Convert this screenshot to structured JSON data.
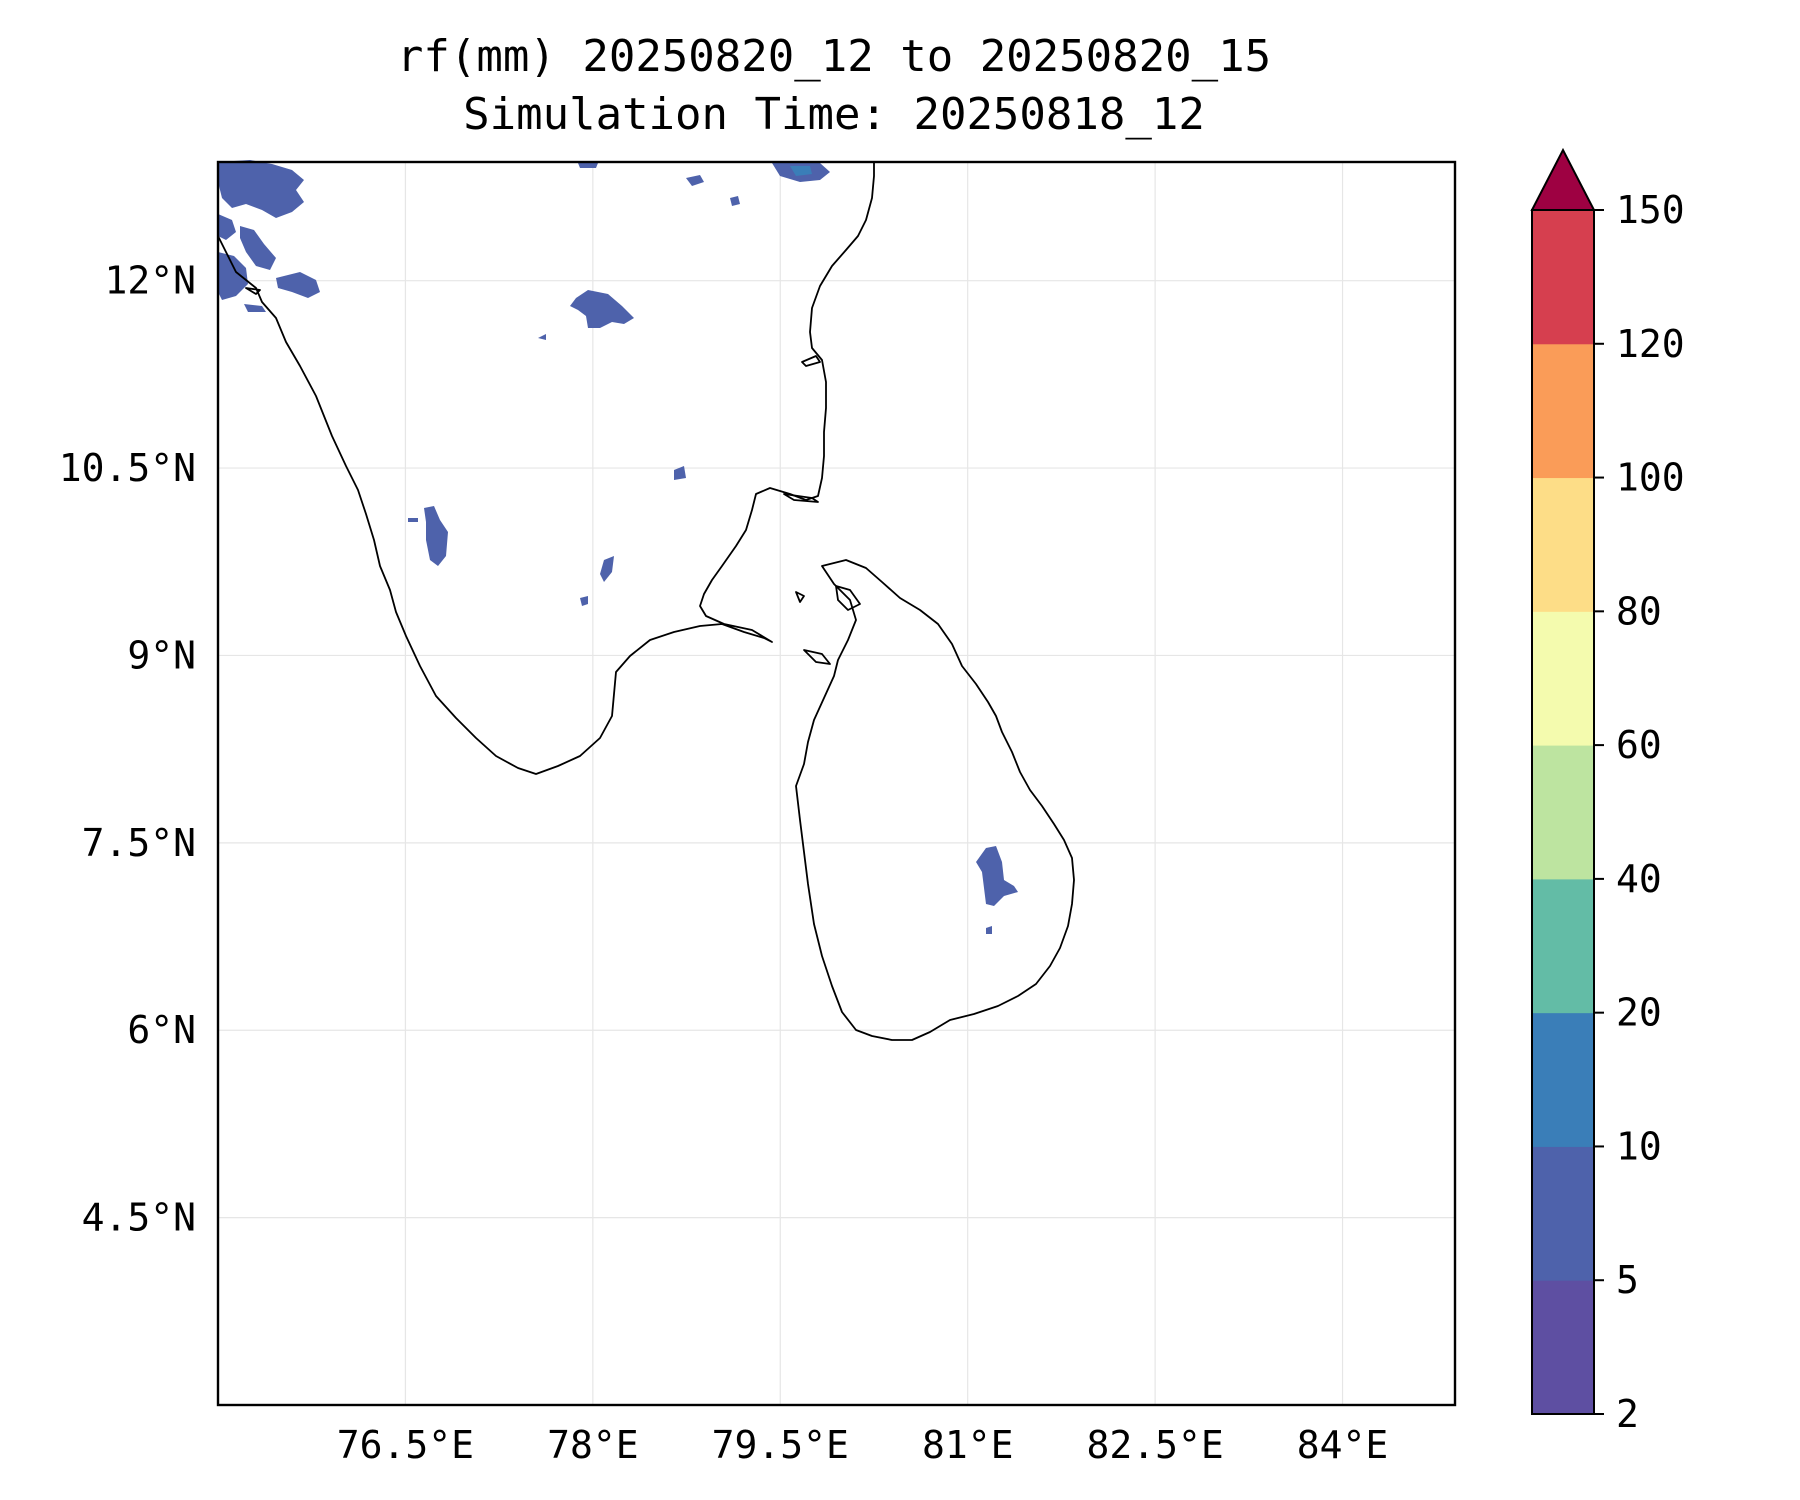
{
  "title": {
    "line1": "rf(mm) 20250820_12 to 20250820_15",
    "line2": "Simulation Time: 20250818_12"
  },
  "map": {
    "lon_range": [
      75.0,
      84.9
    ],
    "lat_range": [
      3.0,
      12.95
    ],
    "lon_ticks": [
      {
        "value": 76.5,
        "label": "76.5°E"
      },
      {
        "value": 78.0,
        "label": "78°E"
      },
      {
        "value": 79.5,
        "label": "79.5°E"
      },
      {
        "value": 81.0,
        "label": "81°E"
      },
      {
        "value": 82.5,
        "label": "82.5°E"
      },
      {
        "value": 84.0,
        "label": "84°E"
      }
    ],
    "lat_ticks": [
      {
        "value": 12.0,
        "label": "12°N"
      },
      {
        "value": 10.5,
        "label": "10.5°N"
      },
      {
        "value": 9.0,
        "label": "9°N"
      },
      {
        "value": 7.5,
        "label": "7.5°N"
      },
      {
        "value": 6.0,
        "label": "6°N"
      },
      {
        "value": 4.5,
        "label": "4.5°N"
      }
    ],
    "gridlines": true
  },
  "colorbar": {
    "levels": [
      "2",
      "5",
      "10",
      "20",
      "40",
      "60",
      "80",
      "100",
      "120",
      "150"
    ],
    "colors": [
      "#5e4fa2",
      "#4e62ab",
      "#3a7eb8",
      "#63bca6",
      "#bde4a0",
      "#f4fbae",
      "#fddd87",
      "#fa9c58",
      "#d63f4f"
    ],
    "extend_color": "#9e0142",
    "extend": "max"
  }
}
